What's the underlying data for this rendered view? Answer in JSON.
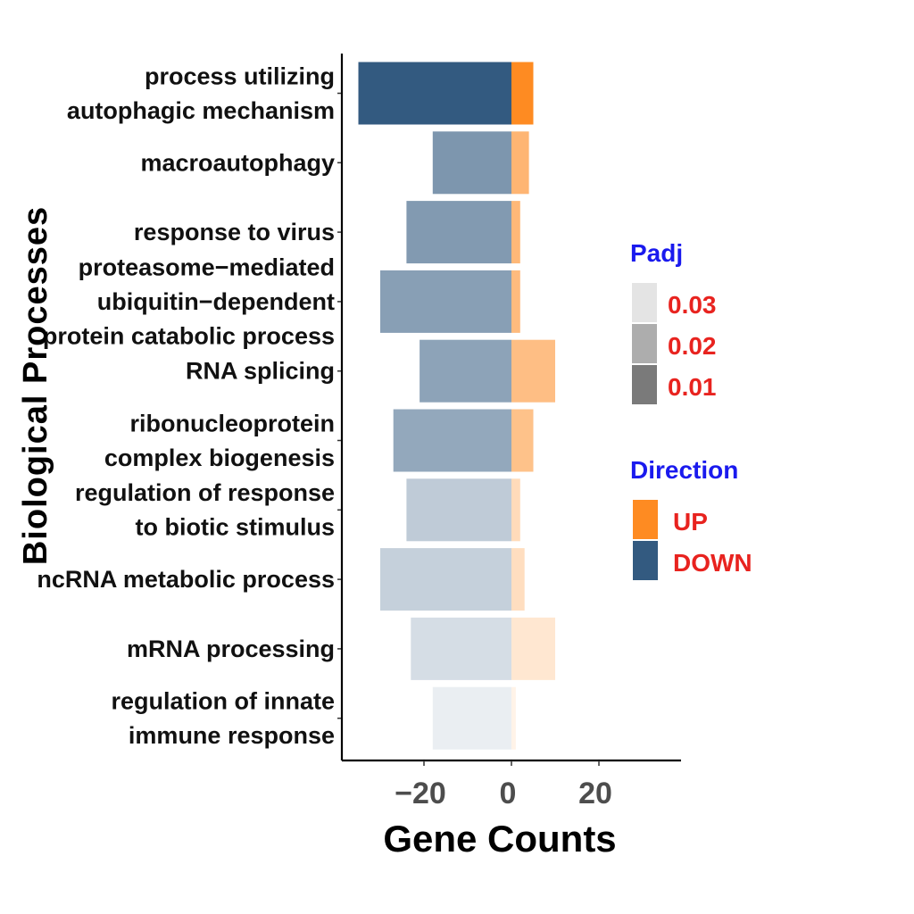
{
  "chart_data": {
    "type": "bar",
    "orientation": "horizontal",
    "xlabel": "Gene Counts",
    "ylabel": "Biological Processes",
    "xlim": [
      -36,
      40
    ],
    "xticks": [
      -20,
      0,
      20
    ],
    "xtick_labels": [
      "−20",
      "0",
      "20"
    ],
    "grid": false,
    "legend_position": "right",
    "categories": [
      [
        "process utilizing",
        "autophagic mechanism"
      ],
      [
        "macroautophagy"
      ],
      [
        "response to virus"
      ],
      [
        "proteasome−mediated",
        "ubiquitin−dependent",
        "protein catabolic process"
      ],
      [
        "RNA splicing"
      ],
      [
        "ribonucleoprotein",
        "complex biogenesis"
      ],
      [
        "regulation of response",
        "to biotic stimulus"
      ],
      [
        "ncRNA metabolic process"
      ],
      [
        "mRNA processing"
      ],
      [
        "regulation of innate",
        "immune response"
      ]
    ],
    "padj": [
      0.0005,
      0.014,
      0.015,
      0.016,
      0.017,
      0.018,
      0.026,
      0.027,
      0.03,
      0.034
    ],
    "series": [
      {
        "name": "UP",
        "color": "#fe8b22",
        "values": [
          5,
          4,
          2,
          2,
          10,
          5,
          2,
          3,
          10,
          1
        ]
      },
      {
        "name": "DOWN",
        "color": "#335a80",
        "values": [
          -35,
          -18,
          -24,
          -30,
          -21,
          -27,
          -24,
          -30,
          -23,
          -18
        ]
      }
    ],
    "legend": {
      "padj_title": "Padj",
      "padj_items": [
        {
          "label": "0.03",
          "color": "#e4e4e4"
        },
        {
          "label": "0.02",
          "color": "#adadad"
        },
        {
          "label": "0.01",
          "color": "#7a7a7a"
        }
      ],
      "direction_title": "Direction",
      "direction_items": [
        {
          "label": "UP",
          "color": "#fe8b22"
        },
        {
          "label": "DOWN",
          "color": "#335a80"
        }
      ]
    }
  }
}
